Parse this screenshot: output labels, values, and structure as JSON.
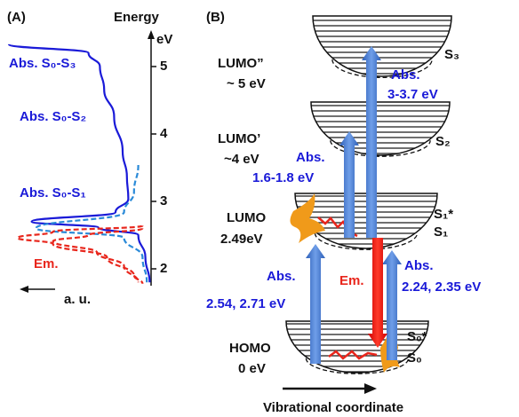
{
  "chart_data": {
    "type": "line",
    "panel_label": "(A)",
    "y_axis_label": "Energy",
    "y_unit": "eV",
    "x_axis_label": "a. u.",
    "ylim": [
      1.75,
      5.5
    ],
    "yticks": [
      2,
      3,
      4,
      5
    ],
    "xlim": [
      1,
      0
    ],
    "annotations": [
      "Abs. S₀-S₃",
      "Abs. S₀-S₂",
      "Abs. S₀-S₁",
      "Em."
    ],
    "series": [
      {
        "color": "#1a1ad8",
        "dashed": false,
        "energy": [
          5.33,
          5.2,
          5.0,
          4.66,
          4.26,
          3.74,
          3.37,
          3.04,
          2.84,
          2.7,
          2.61,
          2.5,
          2.17,
          1.8
        ],
        "intensity": [
          1.0,
          0.44,
          0.36,
          0.33,
          0.26,
          0.2,
          0.17,
          0.16,
          0.25,
          0.84,
          0.37,
          0.09,
          0.04,
          0.01
        ]
      },
      {
        "color": "#2a8ad8",
        "dashed": true,
        "energy": [
          3.54,
          3.14,
          2.84,
          2.6,
          2.46,
          2.17,
          1.8
        ],
        "intensity": [
          0.09,
          0.12,
          0.19,
          0.81,
          0.19,
          0.06,
          0.03
        ]
      },
      {
        "color": "#e8261c",
        "dashed": true,
        "energy": [
          2.64,
          2.55,
          2.46,
          2.37,
          2.17,
          1.9,
          1.78
        ],
        "intensity": [
          0.06,
          0.69,
          0.94,
          0.69,
          0.31,
          0.12,
          0.06
        ]
      },
      {
        "color": "#e8261c",
        "dashed": true,
        "energy": [
          2.6,
          2.5,
          2.41,
          2.24,
          2.04,
          1.8
        ],
        "intensity": [
          0.06,
          0.44,
          0.69,
          0.38,
          0.19,
          0.09
        ]
      }
    ]
  },
  "diagram": {
    "panel_label": "(B)",
    "orbitals": [
      {
        "name": "LUMO”",
        "energy": "~ 5 eV"
      },
      {
        "name": "LUMO’",
        "energy": "~4 eV"
      },
      {
        "name": "LUMO",
        "energy": "2.49eV"
      },
      {
        "name": "HOMO",
        "energy": "0 eV"
      }
    ],
    "states": [
      "S₃",
      "S₂",
      "S₁*",
      "S₁",
      "S₀*",
      "S₀"
    ],
    "transitions": [
      {
        "label": "Abs.",
        "energy": "3-3.7 eV"
      },
      {
        "label": "Abs.",
        "energy": "1.6-1.8 eV"
      },
      {
        "label": "Em."
      },
      {
        "label": "Abs.",
        "energy": "2.24, 2.35 eV"
      },
      {
        "label": "Abs.",
        "energy": "2.54, 2.71 eV"
      }
    ],
    "x_axis_label": "Vibrational coordinate"
  }
}
